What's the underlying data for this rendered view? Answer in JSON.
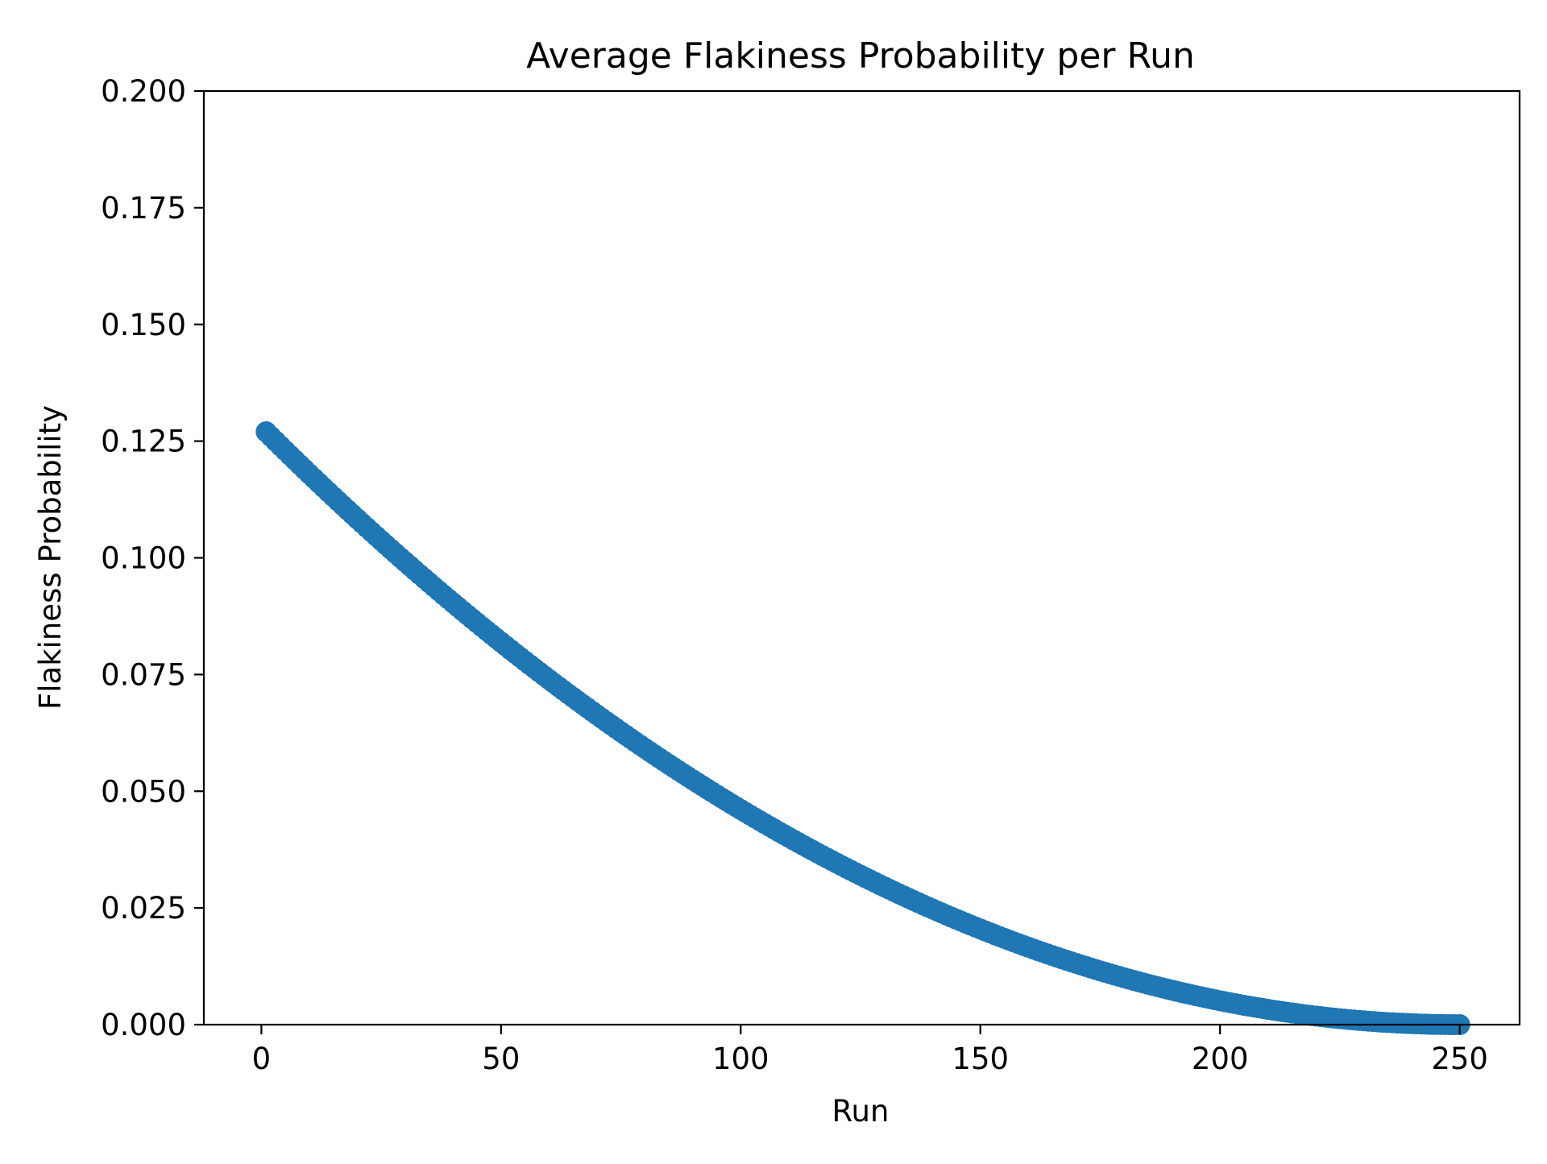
{
  "chart_data": {
    "type": "scatter",
    "title": "Average Flakiness Probability per Run",
    "xlabel": "Run",
    "ylabel": "Flakiness Probability",
    "xlim": [
      -12,
      262.5
    ],
    "ylim": [
      0,
      0.2
    ],
    "xticks": [
      0,
      50,
      100,
      150,
      200,
      250
    ],
    "xtick_labels": [
      "0",
      "50",
      "100",
      "150",
      "200",
      "250"
    ],
    "yticks": [
      0,
      0.025,
      0.05,
      0.075,
      0.1,
      0.125,
      0.15,
      0.175,
      0.2
    ],
    "ytick_labels": [
      "0.000",
      "0.025",
      "0.050",
      "0.075",
      "0.100",
      "0.125",
      "0.150",
      "0.175",
      "0.200"
    ],
    "grid": false,
    "legend": "none",
    "color": "#1f77b4",
    "series": [
      {
        "x_start": 1,
        "x_end": 250,
        "x_step": 1,
        "y_curve": "0.127 * ((250 - run) / 249) ^ 2",
        "y_first": 0.127,
        "y_last": 0.0
      }
    ]
  }
}
